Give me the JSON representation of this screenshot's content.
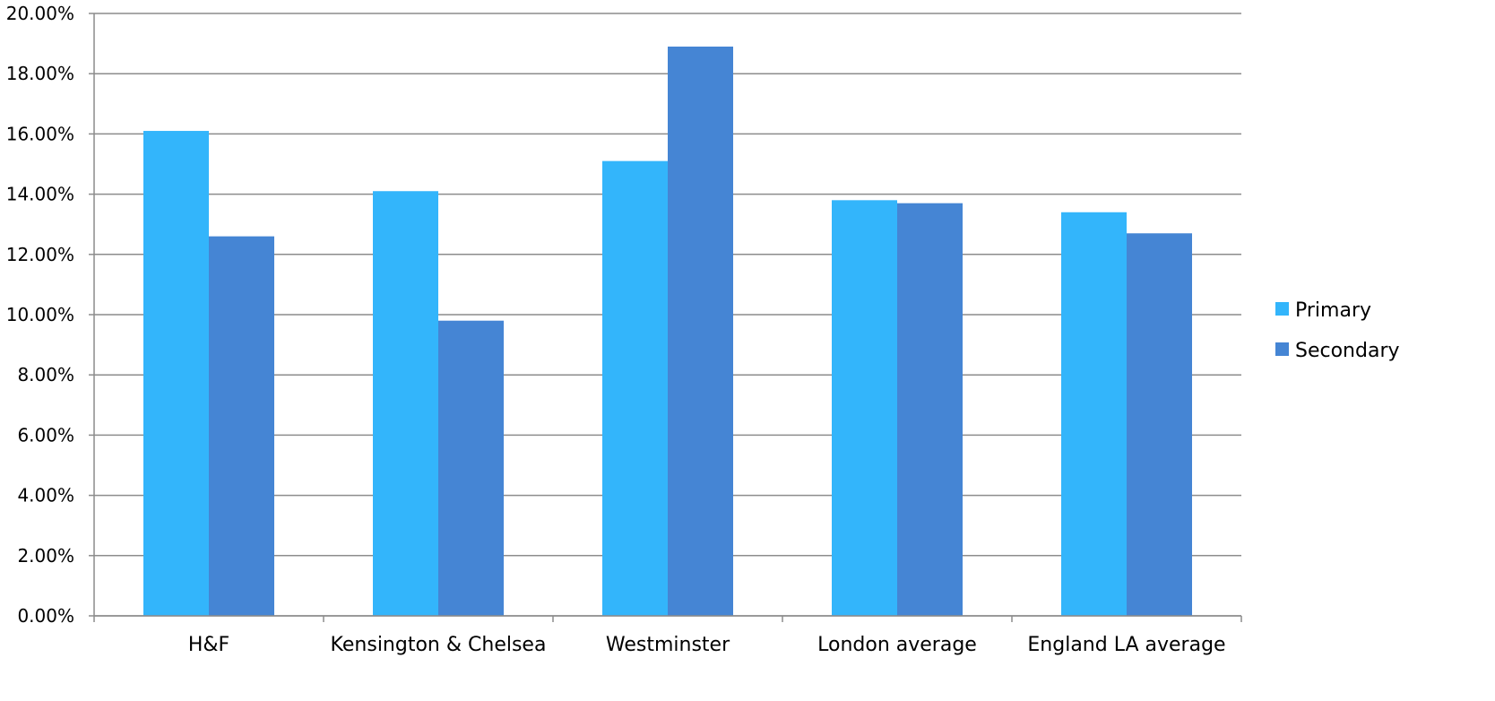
{
  "chart_data": {
    "type": "bar",
    "title": "",
    "xlabel": "",
    "ylabel": "",
    "categories": [
      "H&F",
      "Kensington & Chelsea",
      "Westminster",
      "London average",
      "England LA average"
    ],
    "series": [
      {
        "name": "Primary",
        "color": "#33b5fb",
        "values": [
          16.1,
          14.1,
          15.1,
          13.8,
          13.4
        ]
      },
      {
        "name": "Secondary",
        "color": "#4585d4",
        "values": [
          12.6,
          9.8,
          18.9,
          13.7,
          12.7
        ]
      }
    ],
    "ylim": [
      0,
      20
    ],
    "yticks": [
      0,
      2,
      4,
      6,
      8,
      10,
      12,
      14,
      16,
      18,
      20
    ],
    "ytick_labels": [
      "0.00%",
      "2.00%",
      "4.00%",
      "6.00%",
      "8.00%",
      "10.00%",
      "12.00%",
      "14.00%",
      "16.00%",
      "18.00%",
      "20.00%"
    ],
    "grid": true,
    "legend_position": "right"
  }
}
